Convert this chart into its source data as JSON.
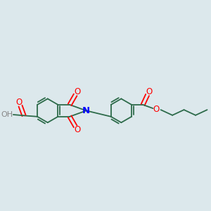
{
  "background_color": "#dce8ec",
  "bond_color": "#2d6b4a",
  "atom_colors": {
    "O": "#ff0000",
    "N": "#0000ff",
    "H": "#808080",
    "C": "#2d6b4a"
  },
  "figsize": [
    3.0,
    3.0
  ],
  "dpi": 100,
  "lw": 1.3,
  "sep": 0.012
}
